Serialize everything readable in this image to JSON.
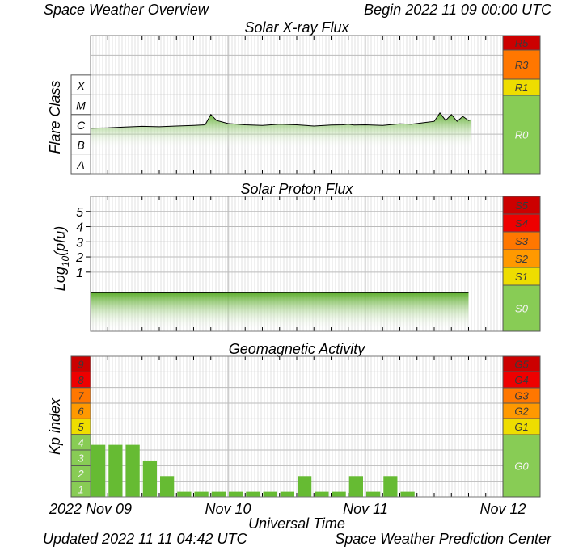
{
  "header": {
    "title_left": "Space Weather Overview",
    "title_right": "Begin 2022 11 09 00:00 UTC"
  },
  "footer": {
    "updated": "Updated 2022 11 11 04:42 UTC",
    "center": "Space Weather Prediction Center"
  },
  "colors": {
    "red_dark": "#cc0000",
    "red": "#ee0000",
    "orange": "#ff7700",
    "orange_light": "#ff9900",
    "yellow": "#eedd00",
    "green": "#88cc55",
    "fill_green": "#66bb33",
    "grid": "#bbbbbb"
  },
  "chart_data": [
    {
      "type": "area",
      "title": "Solar X-ray Flux",
      "ylabel": "Flare Class",
      "xlabel": "",
      "x_range": [
        "2022-11-09 00:00",
        "2022-11-12 00:00"
      ],
      "y_scale": "log",
      "ylim": [
        1e-09,
        0.01
      ],
      "flare_classes": [
        "A",
        "B",
        "C",
        "M",
        "X"
      ],
      "scale_labels": [
        "R5",
        "R3",
        "R1",
        "R0"
      ],
      "x": [
        0,
        3,
        6,
        9,
        12,
        15,
        18,
        20,
        21,
        22,
        24,
        27,
        30,
        33,
        36,
        39,
        42,
        44,
        45,
        46,
        48,
        51,
        54,
        56,
        58,
        60,
        61,
        62,
        63,
        64,
        65,
        66,
        66.5
      ],
      "values": [
        2e-07,
        2.1e-07,
        2.3e-07,
        2.5e-07,
        2.4e-07,
        2.6e-07,
        2.8e-07,
        3e-07,
        1e-06,
        5e-07,
        3.5e-07,
        3e-07,
        2.8e-07,
        3.2e-07,
        3e-07,
        2.6e-07,
        2.9e-07,
        3e-07,
        3.2e-07,
        2.9e-07,
        3e-07,
        2.8e-07,
        3.4e-07,
        3.2e-07,
        3.8e-07,
        4.5e-07,
        1.2e-06,
        5e-07,
        1e-06,
        4.5e-07,
        8e-07,
        5e-07,
        5.5e-07
      ]
    },
    {
      "type": "area",
      "title": "Solar Proton Flux",
      "ylabel": "Log10(pfu)",
      "xlabel": "",
      "x_range": [
        "2022-11-09 00:00",
        "2022-11-12 00:00"
      ],
      "ylim": [
        -2.9,
        6
      ],
      "yticks": [
        1,
        2,
        3,
        4,
        5
      ],
      "scale_labels": [
        "S5",
        "S4",
        "S3",
        "S2",
        "S1",
        "S0"
      ],
      "x": [
        0,
        6,
        12,
        18,
        24,
        30,
        36,
        42,
        48,
        54,
        60,
        66
      ],
      "values": [
        -0.35,
        -0.35,
        -0.36,
        -0.36,
        -0.35,
        -0.35,
        -0.34,
        -0.35,
        -0.35,
        -0.36,
        -0.35,
        -0.35
      ]
    },
    {
      "type": "bar",
      "title": "Geomagnetic Activity",
      "ylabel": "Kp index",
      "xlabel": "Universal Time",
      "x_range": [
        "2022-11-09 00:00",
        "2022-11-12 00:00"
      ],
      "ylim": [
        0,
        9
      ],
      "kp_levels": [
        "1",
        "2",
        "3",
        "4",
        "5",
        "6",
        "7",
        "8",
        "9"
      ],
      "scale_labels": [
        "G5",
        "G4",
        "G3",
        "G2",
        "G1",
        "G0"
      ],
      "tick_labels": [
        "2022 Nov 09",
        "Nov 10",
        "Nov 11",
        "Nov 12"
      ],
      "categories": [
        "00",
        "03",
        "06",
        "09",
        "12",
        "15",
        "18",
        "21",
        "00",
        "03",
        "06",
        "09",
        "12",
        "15",
        "18",
        "21",
        "00",
        "03",
        "06"
      ],
      "values": [
        3.33,
        3.33,
        3.33,
        2.33,
        1.33,
        0.33,
        0.33,
        0.33,
        0.33,
        0.33,
        0.33,
        0.33,
        1.33,
        0.33,
        0.33,
        1.33,
        0.33,
        1.33,
        0.33
      ]
    }
  ]
}
